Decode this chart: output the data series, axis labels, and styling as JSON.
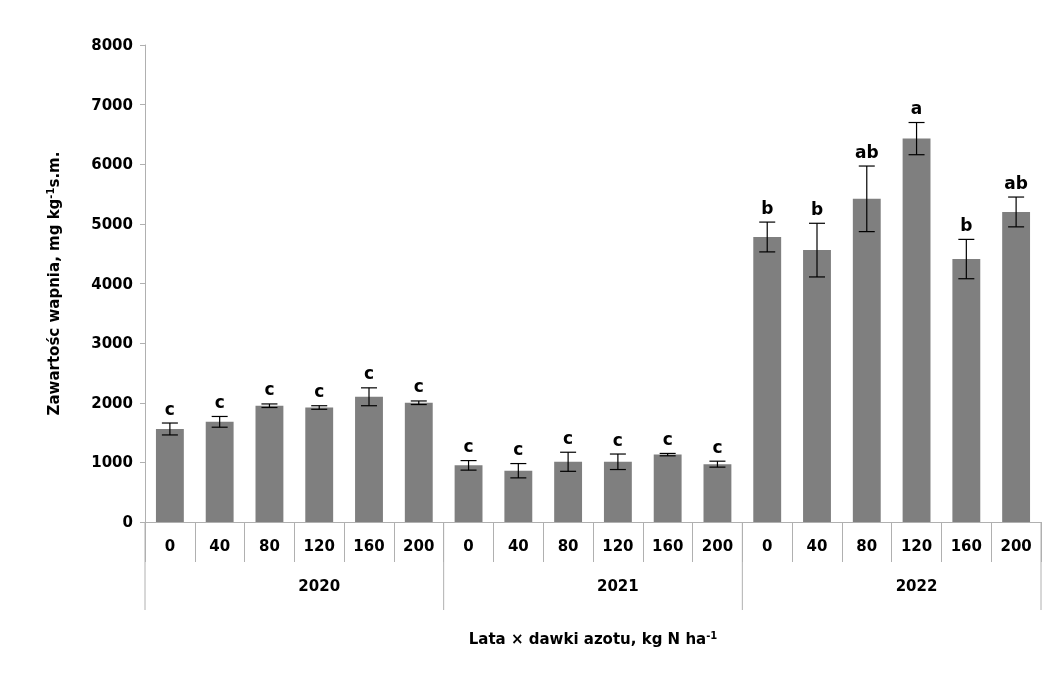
{
  "chart_data": {
    "type": "bar",
    "xlabel": "Lata × dawki azotu, kg N ha$^{-1}$",
    "ylabel": "Zawartośc wapnia, mg kg$^{-1}$s.m.",
    "categories": [
      "0",
      "40",
      "80",
      "120",
      "160",
      "200",
      "0",
      "40",
      "80",
      "120",
      "160",
      "200",
      "0",
      "40",
      "80",
      "120",
      "160",
      "200"
    ],
    "values": [
      1560,
      1680,
      1950,
      1920,
      2100,
      2000,
      950,
      860,
      1010,
      1010,
      1130,
      970,
      4780,
      4560,
      5420,
      6430,
      4410,
      5200
    ],
    "errors": [
      100,
      90,
      30,
      30,
      150,
      30,
      80,
      120,
      160,
      130,
      20,
      50,
      250,
      450,
      550,
      270,
      330,
      250
    ],
    "value_labels": [
      "c",
      "c",
      "c",
      "c",
      "c",
      "c",
      "c",
      "c",
      "c",
      "c",
      "c",
      "c",
      "b",
      "b",
      "ab",
      "a",
      "b",
      "ab"
    ],
    "color": "#7f7f7f",
    "annotations": [
      "2020",
      "2021",
      "2022"
    ],
    "ylim": [
      0,
      8000
    ],
    "yticks": [
      0,
      1000,
      2000,
      3000,
      4000,
      5000,
      6000,
      7000,
      8000
    ],
    "grid": false
  }
}
